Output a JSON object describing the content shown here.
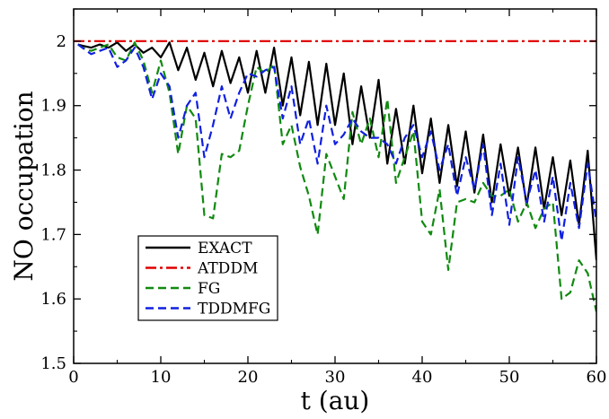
{
  "chart_data": {
    "type": "line",
    "title": "",
    "xlabel": "t (au)",
    "ylabel": "NO occupation",
    "xlim": [
      0,
      60
    ],
    "ylim": [
      1.5,
      2.05
    ],
    "xticks": [
      0,
      10,
      20,
      30,
      40,
      50,
      60
    ],
    "xtick_labels": [
      "0",
      "10",
      "20",
      "30",
      "40",
      "50",
      "60"
    ],
    "yticks": [
      1.5,
      1.6,
      1.7,
      1.8,
      1.9,
      2.0
    ],
    "ytick_labels": [
      "1.5",
      "1.6",
      "1.7",
      "1.8",
      "1.9",
      "2"
    ],
    "grid": false,
    "legend_position": "lower-left",
    "series": [
      {
        "name": "EXACT",
        "color": "#000000",
        "dash": "solid",
        "x": [
          0.5,
          1,
          2,
          3,
          4,
          5,
          6,
          7,
          8,
          9,
          10,
          11,
          12,
          13,
          14,
          15,
          16,
          17,
          18,
          19,
          20,
          21,
          22,
          23,
          24,
          25,
          26,
          27,
          28,
          29,
          30,
          31,
          32,
          33,
          34,
          35,
          36,
          37,
          38,
          39,
          40,
          41,
          42,
          43,
          44,
          45,
          46,
          47,
          48,
          49,
          50,
          51,
          52,
          53,
          54,
          55,
          56,
          57,
          58,
          59,
          60
        ],
        "y": [
          1.995,
          1.993,
          1.99,
          1.995,
          1.99,
          1.998,
          1.985,
          1.995,
          1.982,
          1.99,
          1.975,
          1.998,
          1.955,
          1.99,
          1.94,
          1.982,
          1.93,
          1.985,
          1.935,
          1.975,
          1.92,
          1.985,
          1.92,
          1.99,
          1.9,
          1.975,
          1.885,
          1.968,
          1.87,
          1.965,
          1.87,
          1.95,
          1.84,
          1.93,
          1.85,
          1.94,
          1.81,
          1.895,
          1.81,
          1.9,
          1.795,
          1.88,
          1.78,
          1.87,
          1.775,
          1.86,
          1.765,
          1.855,
          1.75,
          1.84,
          1.76,
          1.835,
          1.745,
          1.835,
          1.74,
          1.82,
          1.73,
          1.815,
          1.715,
          1.83,
          1.66
        ]
      },
      {
        "name": "ATDDM",
        "color": "#e00000",
        "dash": "dashdot",
        "x": [
          0,
          60
        ],
        "y": [
          2.0,
          2.0
        ]
      },
      {
        "name": "FG",
        "color": "#108a10",
        "dash": "dashed",
        "x": [
          0.5,
          1,
          2,
          3,
          4,
          5,
          6,
          7,
          8,
          9,
          10,
          11,
          12,
          13,
          14,
          15,
          16,
          17,
          18,
          19,
          20,
          21,
          22,
          23,
          24,
          25,
          26,
          27,
          28,
          29,
          30,
          31,
          32,
          33,
          34,
          35,
          36,
          37,
          38,
          39,
          40,
          41,
          42,
          43,
          44,
          45,
          46,
          47,
          48,
          49,
          50,
          51,
          52,
          53,
          54,
          55,
          56,
          57,
          58,
          59,
          60
        ],
        "y": [
          1.995,
          1.99,
          1.985,
          1.99,
          1.995,
          1.975,
          1.97,
          1.998,
          1.97,
          1.92,
          1.97,
          1.92,
          1.825,
          1.9,
          1.88,
          1.73,
          1.725,
          1.825,
          1.82,
          1.83,
          1.9,
          1.96,
          1.95,
          1.965,
          1.84,
          1.87,
          1.805,
          1.76,
          1.7,
          1.825,
          1.79,
          1.755,
          1.89,
          1.84,
          1.88,
          1.82,
          1.91,
          1.78,
          1.82,
          1.86,
          1.72,
          1.7,
          1.77,
          1.645,
          1.75,
          1.755,
          1.75,
          1.78,
          1.76,
          1.76,
          1.77,
          1.72,
          1.75,
          1.71,
          1.74,
          1.75,
          1.6,
          1.61,
          1.66,
          1.64,
          1.58
        ]
      },
      {
        "name": "TDDMFG",
        "color": "#1020e0",
        "dash": "dashed",
        "x": [
          0.5,
          1,
          2,
          3,
          4,
          5,
          6,
          7,
          8,
          9,
          10,
          11,
          12,
          13,
          14,
          15,
          16,
          17,
          18,
          19,
          20,
          21,
          22,
          23,
          24,
          25,
          26,
          27,
          28,
          29,
          30,
          31,
          32,
          33,
          34,
          35,
          36,
          37,
          38,
          39,
          40,
          41,
          42,
          43,
          44,
          45,
          46,
          47,
          48,
          49,
          50,
          51,
          52,
          53,
          54,
          55,
          56,
          57,
          58,
          59,
          60
        ],
        "y": [
          1.995,
          1.99,
          1.98,
          1.985,
          1.99,
          1.96,
          1.97,
          1.99,
          1.96,
          1.91,
          1.95,
          1.93,
          1.85,
          1.9,
          1.92,
          1.82,
          1.87,
          1.93,
          1.88,
          1.92,
          1.95,
          1.945,
          1.955,
          1.96,
          1.88,
          1.93,
          1.84,
          1.88,
          1.81,
          1.9,
          1.84,
          1.855,
          1.88,
          1.86,
          1.85,
          1.85,
          1.84,
          1.81,
          1.85,
          1.87,
          1.82,
          1.86,
          1.8,
          1.84,
          1.76,
          1.82,
          1.77,
          1.84,
          1.73,
          1.81,
          1.715,
          1.82,
          1.75,
          1.8,
          1.72,
          1.79,
          1.69,
          1.78,
          1.71,
          1.81,
          1.72
        ]
      }
    ]
  }
}
